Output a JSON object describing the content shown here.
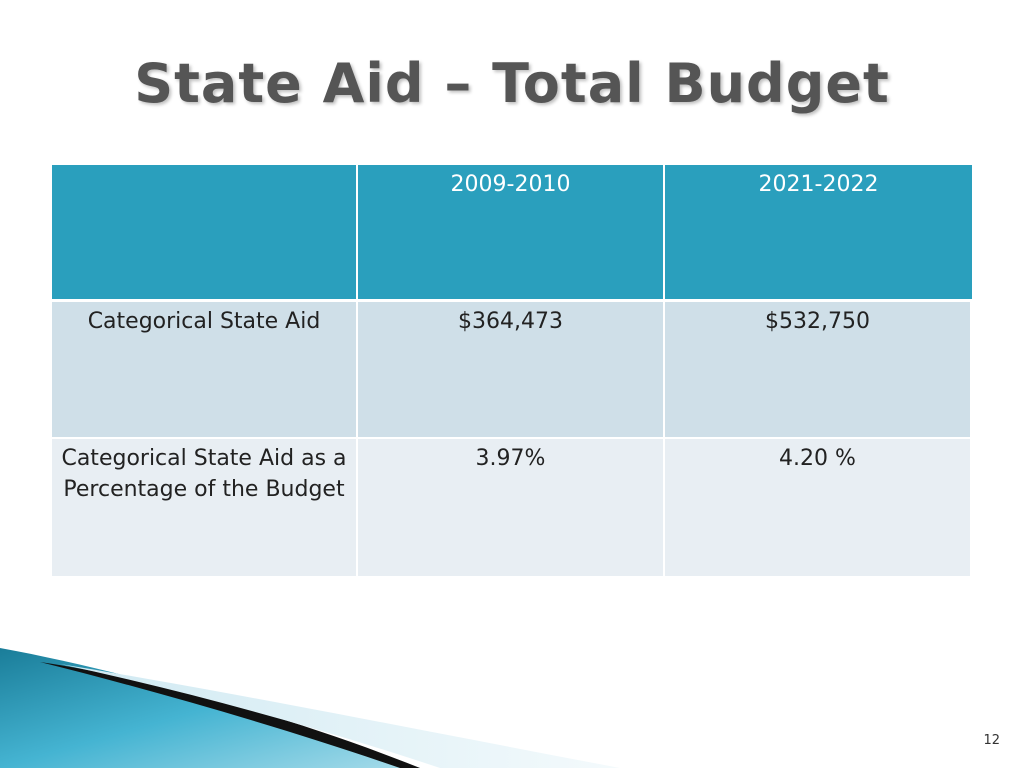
{
  "slide": {
    "title": "State Aid – Total Budget",
    "page_number": "12"
  },
  "table": {
    "headers": [
      "",
      "2009-2010",
      "2021-2022"
    ],
    "rows": [
      {
        "label": "Categorical State Aid",
        "values": [
          "$364,473",
          "$532,750"
        ]
      },
      {
        "label": "Categorical State Aid as a Percentage of the Budget",
        "values": [
          "3.97%",
          "4.20 %"
        ]
      }
    ]
  },
  "colors": {
    "header_bg": "#2a9fbd",
    "row1_bg": "#cfdfe8",
    "row2_bg": "#e8eef3",
    "title_color": "#555555"
  }
}
